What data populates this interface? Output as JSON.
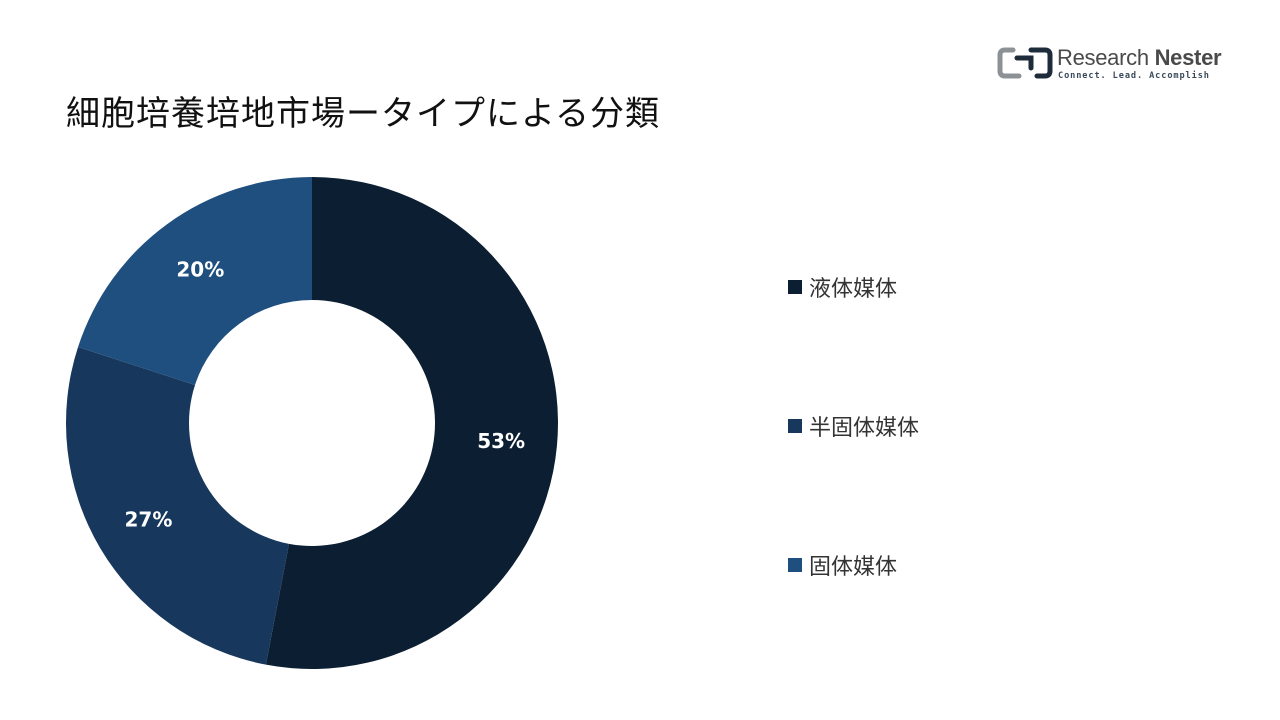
{
  "brand": {
    "name_part1": "Research ",
    "name_part2": "Nester",
    "tagline": "Connect. Lead. Accomplish"
  },
  "chart_data": {
    "type": "pie",
    "variant": "donut",
    "title": "細胞培養培地市場ータイプによる分類",
    "legend_position": "right",
    "categories": [
      "液体媒体",
      "半固体媒体",
      "固体媒体"
    ],
    "values": [
      53,
      27,
      20
    ],
    "data_labels": [
      "53%",
      "27%",
      "20%"
    ],
    "colors": [
      "#0c1e31",
      "#17385c",
      "#1e4f7f"
    ]
  }
}
